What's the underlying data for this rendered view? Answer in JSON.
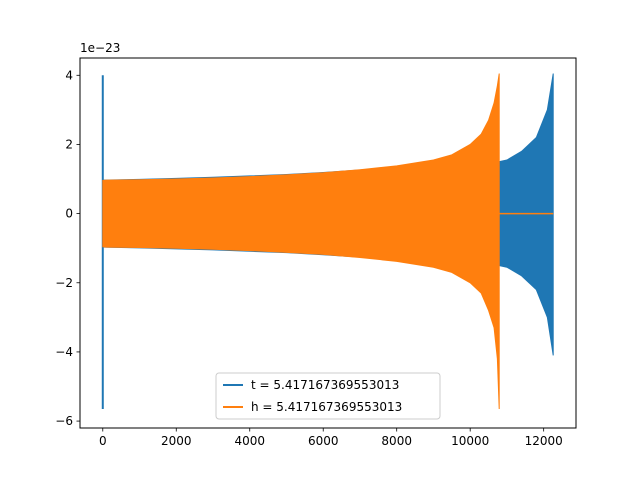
{
  "chart_data": {
    "type": "line",
    "title": "",
    "xlabel": "",
    "ylabel": "",
    "y_offset_label": "1e−23",
    "xlim": [
      -620,
      12880
    ],
    "ylim": [
      -6.2,
      4.5
    ],
    "x_ticks": [
      0,
      2000,
      4000,
      6000,
      8000,
      10000,
      12000
    ],
    "x_tick_labels": [
      "0",
      "2000",
      "4000",
      "6000",
      "8000",
      "10000",
      "12000"
    ],
    "y_ticks": [
      -6,
      -4,
      -2,
      0,
      2,
      4
    ],
    "y_tick_labels": [
      "−6",
      "−4",
      "−2",
      "0",
      "2",
      "4"
    ],
    "grid": false,
    "legend_position": "lower center",
    "series": [
      {
        "name": "t = 5.417167369553013",
        "color": "#1f77b4",
        "envelope": {
          "x": [
            0,
            500,
            1000,
            2000,
            3000,
            4000,
            5000,
            6000,
            7000,
            8000,
            9000,
            10000,
            10500,
            10780,
            11000,
            11400,
            11800,
            12100,
            12260
          ],
          "upper": [
            0.97,
            0.98,
            0.99,
            1.02,
            1.05,
            1.09,
            1.13,
            1.19,
            1.26,
            1.35,
            1.48,
            1.6,
            1.65,
            1.5,
            1.55,
            1.8,
            2.2,
            3.0,
            4.05
          ],
          "lower": [
            -0.97,
            -0.98,
            -0.99,
            -1.02,
            -1.05,
            -1.09,
            -1.13,
            -1.19,
            -1.26,
            -1.35,
            -1.48,
            -1.6,
            -1.65,
            -1.5,
            -1.55,
            -1.8,
            -2.2,
            -3.0,
            -4.1
          ]
        },
        "spike": {
          "x": 0,
          "max": 4.0,
          "min": -5.65
        }
      },
      {
        "name": "h = 5.417167369553013",
        "color": "#ff7f0e",
        "envelope": {
          "x": [
            0,
            100,
            1000,
            2000,
            3000,
            4000,
            5000,
            6000,
            7000,
            8000,
            9000,
            9500,
            10000,
            10300,
            10500,
            10650,
            10740,
            10790
          ],
          "upper": [
            0.96,
            0.97,
            0.98,
            1.0,
            1.03,
            1.07,
            1.12,
            1.18,
            1.27,
            1.38,
            1.55,
            1.7,
            2.0,
            2.3,
            2.7,
            3.2,
            3.7,
            4.05
          ],
          "lower": [
            -0.96,
            -0.97,
            -0.98,
            -1.0,
            -1.03,
            -1.07,
            -1.12,
            -1.18,
            -1.27,
            -1.38,
            -1.55,
            -1.7,
            -2.0,
            -2.3,
            -2.8,
            -3.3,
            -4.2,
            -5.65
          ]
        },
        "flat": {
          "x": [
            10790,
            12260
          ],
          "y": 0
        }
      }
    ]
  }
}
